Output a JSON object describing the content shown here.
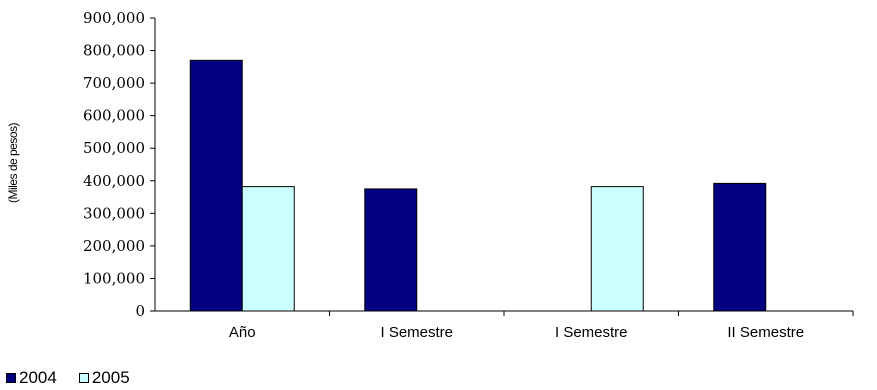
{
  "chart_data": {
    "type": "bar",
    "title": "",
    "xlabel": "",
    "ylabel": "(Miles de pesos)",
    "categories": [
      "Año",
      "I Semestre",
      "I Semestre",
      "II Semestre"
    ],
    "ylim": [
      0,
      900000
    ],
    "yticks": [
      0,
      100000,
      200000,
      300000,
      400000,
      500000,
      600000,
      700000,
      800000,
      900000
    ],
    "ytick_labels": [
      "0",
      "100,000",
      "200,000",
      "300,000",
      "400,000",
      "500,000",
      "600,000",
      "700,000",
      "800,000",
      "900,000"
    ],
    "series": [
      {
        "name": "2004",
        "color": "#000080",
        "values": [
          770000,
          375000,
          null,
          392000
        ]
      },
      {
        "name": "2005",
        "color": "#ccffff",
        "values": [
          382000,
          null,
          382000,
          null
        ]
      }
    ],
    "legend_position": "bottom-left",
    "grid": false
  }
}
